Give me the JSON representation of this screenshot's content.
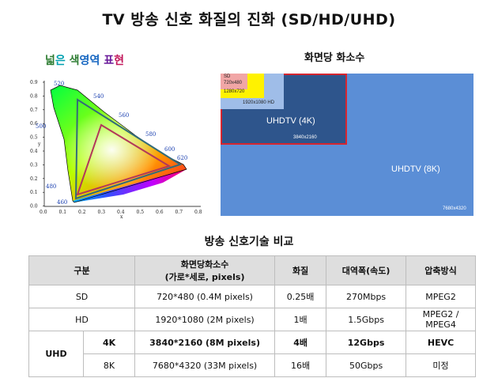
{
  "title": "TV 방송 신호 화질의 진화 (SD/HD/UHD)",
  "gamut": {
    "title_chars": [
      {
        "ch": "넓",
        "color": "#2e7d32"
      },
      {
        "ch": "은",
        "color": "#00a0b0"
      },
      {
        "ch": " ",
        "color": "#000"
      },
      {
        "ch": "색",
        "color": "#2e7d32"
      },
      {
        "ch": "영",
        "color": "#1565c0"
      },
      {
        "ch": "역",
        "color": "#1565c0"
      },
      {
        "ch": " ",
        "color": "#000"
      },
      {
        "ch": "표",
        "color": "#6a1b9a"
      },
      {
        "ch": "현",
        "color": "#c2185b"
      }
    ],
    "y_ticks": [
      "0.9",
      "0.8",
      "0.7",
      "0.6",
      "0.5",
      "0.4",
      "0.3",
      "0.2",
      "0.1",
      "0.0"
    ],
    "x_ticks": [
      "0.0",
      "0.1",
      "0.2",
      "0.3",
      "0.4",
      "0.5",
      "0.6",
      "0.7",
      "0.8"
    ],
    "x_label": "x",
    "y_label": "y",
    "wavelengths": [
      "520",
      "540",
      "560",
      "580",
      "500",
      "600",
      "620",
      "480",
      "460"
    ]
  },
  "pixels": {
    "title": "화면당 화소수",
    "sd_label": "SD",
    "sd_res": "720x480",
    "hd720_res": "1280x720",
    "hd_label": "1920x1080  HD",
    "uhd4k_label": "UHDTV (4K)",
    "uhd4k_res": "3840x2160",
    "uhd8k_label": "UHDTV (8K)",
    "uhd8k_res": "7680x4320"
  },
  "compare": {
    "title": "방송 신호기술 비교",
    "headers": [
      "구분",
      "화면당화소수",
      "(가로*세로, pixels)",
      "화질",
      "대역폭(속도)",
      "압축방식"
    ],
    "rows": {
      "sd": {
        "name": "SD",
        "pixels": "720*480 (0.4M pixels)",
        "quality": "0.25배",
        "bandwidth": "270Mbps",
        "codec": "MPEG2"
      },
      "hd": {
        "name": "HD",
        "pixels": "1920*1080 (2M pixels)",
        "quality": "1배",
        "bandwidth": "1.5Gbps",
        "codec": "MPEG2 / MPEG4"
      },
      "uhd_group": "UHD",
      "k4": {
        "name": "4K",
        "pixels": "3840*2160 (8M pixels)",
        "quality": "4배",
        "bandwidth": "12Gbps",
        "codec": "HEVC"
      },
      "k8": {
        "name": "8K",
        "pixels": "7680*4320 (33M pixels)",
        "quality": "16배",
        "bandwidth": "50Gbps",
        "codec": "미정"
      }
    }
  }
}
